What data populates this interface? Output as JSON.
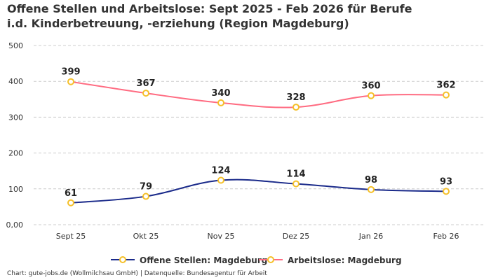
{
  "chart_data": {
    "type": "line",
    "title": "Offene Stellen und Arbeitslose: Sept 2025 - Feb 2026 für Berufe i.d. Kinderbetreuung, -erziehung (Region Magdeburg)",
    "categories": [
      "Sept 25",
      "Okt 25",
      "Nov 25",
      "Dez 25",
      "Jan 26",
      "Feb 26"
    ],
    "series": [
      {
        "name": "Offene Stellen: Magdeburg",
        "values": [
          61,
          79,
          124,
          114,
          98,
          93
        ],
        "color": "#1a2a8a"
      },
      {
        "name": "Arbeitslose: Magdeburg",
        "values": [
          399,
          367,
          340,
          328,
          360,
          362
        ],
        "color": "#ff6b81"
      }
    ],
    "marker_color": "#f5c02a",
    "ylim": [
      0,
      500
    ],
    "yticks": [
      0,
      100,
      200,
      300,
      400,
      500
    ],
    "ytick_labels": [
      "0,00",
      "100",
      "200",
      "300",
      "400",
      "500"
    ],
    "grid": true,
    "legend": "bottom",
    "data_labels": true
  },
  "footer": "Chart: gute-jobs.de (Wollmilchsau GmbH) | Datenquelle: Bundesagentur für Arbeit"
}
